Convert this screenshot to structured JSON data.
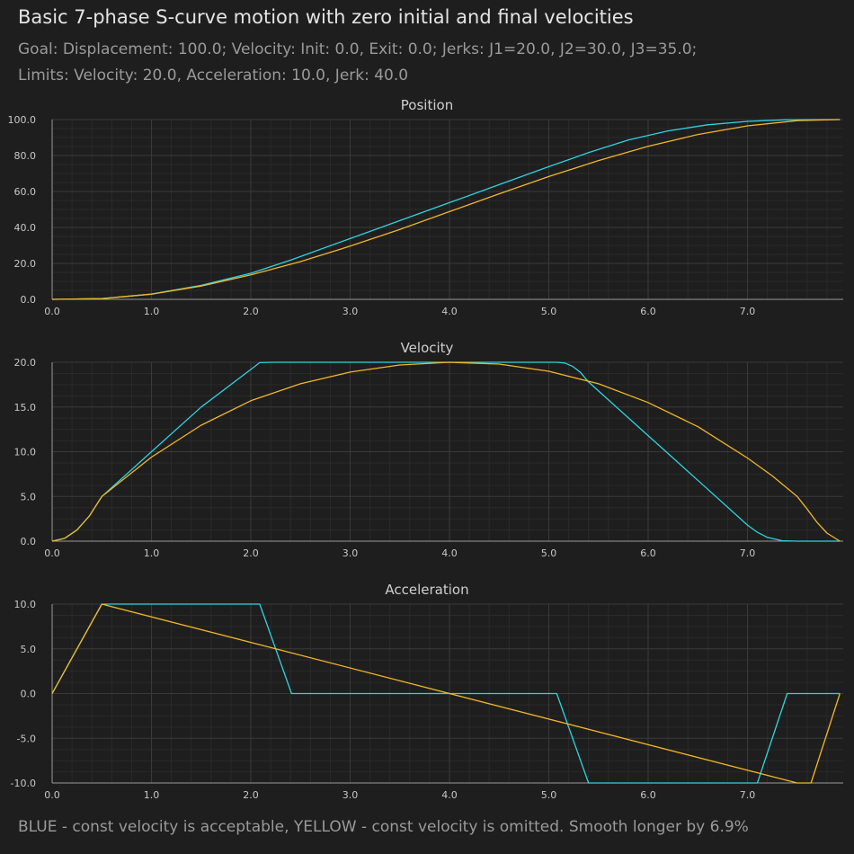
{
  "header": {
    "title": "Basic 7-phase S-curve motion with zero initial and final velocities",
    "goal": "Goal: Displacement: 100.0; Velocity: Init: 0.0, Exit: 0.0; Jerks: J1=20.0, J2=30.0, J3=35.0;",
    "limits": "Limits: Velocity: 20.0, Acceleration: 10.0, Jerk: 40.0"
  },
  "footer": "BLUE - const velocity is acceptable, YELLOW - const velocity is omitted. Smooth longer by 6.9%",
  "colors": {
    "background": "#1e1e1e",
    "blue_series": "#2fd3e0",
    "yellow_series": "#f2b629",
    "grid_major": "#3a3a3a",
    "grid_minor": "#2a2a2a"
  },
  "chart_data": [
    {
      "type": "line",
      "title": "Position",
      "xlim": [
        0,
        7.93
      ],
      "ylim": [
        0,
        100
      ],
      "xticks": [
        "0.0",
        "1.0",
        "2.0",
        "3.0",
        "4.0",
        "5.0",
        "6.0",
        "7.0"
      ],
      "yticks": [
        "0.0",
        "20.0",
        "40.0",
        "60.0",
        "80.0",
        "100.0"
      ],
      "grid": true,
      "series": [
        {
          "color": "blue",
          "x": [
            0,
            0.5,
            1.0,
            1.5,
            2.0,
            2.41,
            3.0,
            3.5,
            4.0,
            4.5,
            5.0,
            5.4,
            5.8,
            6.2,
            6.6,
            7.0,
            7.4,
            7.93
          ],
          "y": [
            0,
            0.4,
            2.9,
            7.8,
            14.5,
            22.0,
            33.8,
            43.8,
            53.8,
            63.8,
            73.8,
            81.6,
            88.6,
            93.7,
            97.1,
            99.0,
            99.9,
            100
          ]
        },
        {
          "color": "yellow",
          "x": [
            0,
            0.5,
            1.0,
            1.5,
            2.0,
            2.5,
            3.0,
            3.5,
            4.0,
            4.5,
            5.0,
            5.5,
            6.0,
            6.5,
            7.0,
            7.5,
            7.93
          ],
          "y": [
            0,
            0.4,
            2.9,
            7.4,
            13.6,
            21.0,
            29.6,
            38.9,
            48.8,
            58.7,
            68.3,
            77.2,
            85.1,
            91.7,
            96.5,
            99.4,
            100
          ]
        }
      ]
    },
    {
      "type": "line",
      "title": "Velocity",
      "xlim": [
        0,
        7.93
      ],
      "ylim": [
        0,
        20
      ],
      "xticks": [
        "0.0",
        "1.0",
        "2.0",
        "3.0",
        "4.0",
        "5.0",
        "6.0",
        "7.0"
      ],
      "yticks": [
        "0.0",
        "5.0",
        "10.0",
        "15.0",
        "20.0"
      ],
      "grid": true,
      "series": [
        {
          "color": "blue",
          "x": [
            0,
            0.125,
            0.25,
            0.375,
            0.5,
            1.0,
            1.5,
            2.0,
            2.09,
            2.17,
            2.25,
            2.33,
            2.41,
            5.08,
            5.16,
            5.24,
            5.32,
            5.4,
            6.0,
            6.5,
            7.0,
            7.1,
            7.2,
            7.35,
            7.5,
            7.93
          ],
          "y": [
            0,
            0.31,
            1.25,
            2.81,
            5.0,
            10.0,
            15.0,
            19.2,
            19.96,
            19.99,
            20.0,
            20.0,
            20.0,
            20.0,
            19.92,
            19.55,
            18.85,
            17.8,
            11.8,
            6.8,
            1.8,
            0.99,
            0.42,
            0.05,
            0,
            0
          ]
        },
        {
          "color": "yellow",
          "x": [
            0,
            0.125,
            0.25,
            0.375,
            0.5,
            1.0,
            1.5,
            2.0,
            2.5,
            3.0,
            3.5,
            4.0,
            4.5,
            5.0,
            5.5,
            6.0,
            6.5,
            7.0,
            7.25,
            7.5,
            7.6,
            7.7,
            7.8,
            7.93
          ],
          "y": [
            0,
            0.31,
            1.25,
            2.81,
            5.0,
            9.4,
            12.96,
            15.7,
            17.6,
            18.9,
            19.7,
            20.0,
            19.8,
            19.0,
            17.6,
            15.5,
            12.8,
            9.3,
            7.3,
            5.0,
            3.6,
            2.1,
            0.9,
            0
          ]
        }
      ]
    },
    {
      "type": "line",
      "title": "Acceleration",
      "xlim": [
        0,
        7.93
      ],
      "ylim": [
        -10,
        10
      ],
      "xticks": [
        "0.0",
        "1.0",
        "2.0",
        "3.0",
        "4.0",
        "5.0",
        "6.0",
        "7.0"
      ],
      "yticks": [
        "-10.0",
        "-5.0",
        "0.0",
        "5.0",
        "10.0"
      ],
      "grid": true,
      "series": [
        {
          "color": "blue",
          "x": [
            0,
            0.5,
            2.09,
            2.41,
            5.08,
            5.4,
            7.1,
            7.4,
            7.93
          ],
          "y": [
            0,
            10,
            10,
            0,
            0,
            -10,
            -10,
            0,
            0
          ]
        },
        {
          "color": "yellow",
          "x": [
            0,
            0.5,
            7.5,
            7.64,
            7.93
          ],
          "y": [
            0,
            10,
            -10,
            -10,
            0
          ]
        }
      ]
    }
  ]
}
